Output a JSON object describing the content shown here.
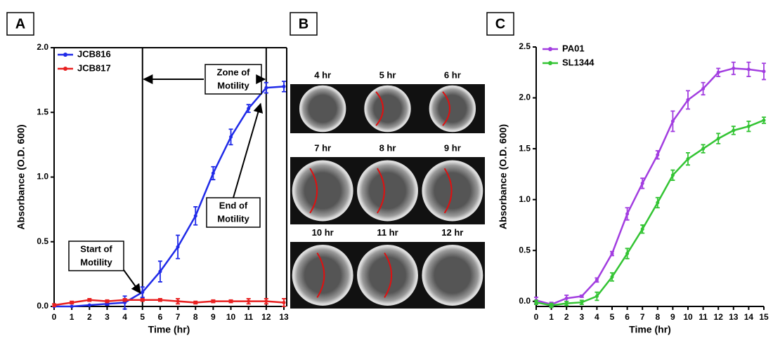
{
  "chart_data": [
    {
      "type": "line",
      "panel": "A",
      "xlabel": "Time (hr)",
      "ylabel": "Absorbance (O.D. 600)",
      "xlim": [
        0,
        13
      ],
      "xticks": [
        0,
        1,
        2,
        3,
        4,
        5,
        6,
        7,
        8,
        9,
        10,
        11,
        12,
        13
      ],
      "ylim": [
        0,
        2.0
      ],
      "yticks": [
        {
          "value": 0,
          "label": "0.0"
        },
        0.5,
        {
          "value": 1,
          "label": "1.0"
        },
        1.5,
        {
          "value": 2,
          "label": "2.0"
        }
      ],
      "x": [
        0,
        1,
        2,
        3,
        4,
        5,
        6,
        7,
        8,
        9,
        10,
        11,
        12,
        13
      ],
      "series": [
        {
          "name": "JCB816",
          "color": "#1f2ae8",
          "values": [
            0,
            0,
            0.01,
            0.02,
            0.03,
            0.11,
            0.27,
            0.46,
            0.7,
            1.03,
            1.31,
            1.53,
            1.69,
            1.7
          ],
          "errors": [
            0,
            0,
            0,
            0.01,
            0.05,
            0.04,
            0.08,
            0.09,
            0.07,
            0.05,
            0.06,
            0.03,
            0.04,
            0.04
          ]
        },
        {
          "name": "JCB817",
          "color": "#e82020",
          "values": [
            0.01,
            0.03,
            0.05,
            0.04,
            0.05,
            0.05,
            0.05,
            0.04,
            0.03,
            0.04,
            0.04,
            0.04,
            0.04,
            0.03
          ],
          "errors": [
            0.01,
            0.01,
            0.01,
            0.01,
            0.01,
            0.01,
            0.01,
            0.02,
            0.01,
            0.01,
            0.01,
            0.02,
            0.02,
            0.03
          ]
        }
      ],
      "vlines": [
        5,
        12
      ],
      "annotations": [
        [
          "Zone of",
          "Motility"
        ],
        [
          "Start of",
          "Motility"
        ],
        [
          "End of",
          "Motility"
        ]
      ]
    },
    {
      "type": "line",
      "panel": "C",
      "xlabel": "Time (hr)",
      "ylabel": "Absorbance (O.D. 600)",
      "xlim": [
        0,
        15
      ],
      "xticks": [
        0,
        1,
        2,
        3,
        4,
        5,
        6,
        7,
        8,
        9,
        10,
        11,
        12,
        13,
        14,
        15
      ],
      "ylim": [
        -0.05,
        2.5
      ],
      "yticks": [
        {
          "value": 0,
          "label": "0.0"
        },
        0.5,
        {
          "value": 1,
          "label": "1.0"
        },
        1.5,
        {
          "value": 2,
          "label": "2.0"
        },
        2.5
      ],
      "x": [
        0,
        1,
        2,
        3,
        4,
        5,
        6,
        7,
        8,
        9,
        10,
        11,
        12,
        13,
        14,
        15
      ],
      "series": [
        {
          "name": "PA01",
          "color": "#a23de0",
          "values": [
            0.01,
            -0.03,
            0.03,
            0.05,
            0.21,
            0.47,
            0.86,
            1.16,
            1.44,
            1.77,
            1.98,
            2.09,
            2.25,
            2.29,
            2.28,
            2.26
          ],
          "errors": [
            0.03,
            0.02,
            0.03,
            0.01,
            0.02,
            0.02,
            0.06,
            0.05,
            0.04,
            0.1,
            0.09,
            0.06,
            0.04,
            0.06,
            0.07,
            0.08
          ]
        },
        {
          "name": "SL1344",
          "color": "#33c433",
          "values": [
            -0.01,
            -0.04,
            -0.02,
            -0.01,
            0.05,
            0.24,
            0.47,
            0.71,
            0.97,
            1.24,
            1.4,
            1.5,
            1.6,
            1.68,
            1.72,
            1.78
          ],
          "errors": [
            0.02,
            0.02,
            0.02,
            0.02,
            0.04,
            0.04,
            0.05,
            0.04,
            0.05,
            0.05,
            0.06,
            0.04,
            0.05,
            0.04,
            0.05,
            0.03
          ]
        }
      ]
    }
  ],
  "panel_b": {
    "panel": "B",
    "labels": [
      "4 hr",
      "5 hr",
      "6 hr",
      "7 hr",
      "8 hr",
      "9 hr",
      "10 hr",
      "11 hr",
      "12 hr"
    ]
  }
}
